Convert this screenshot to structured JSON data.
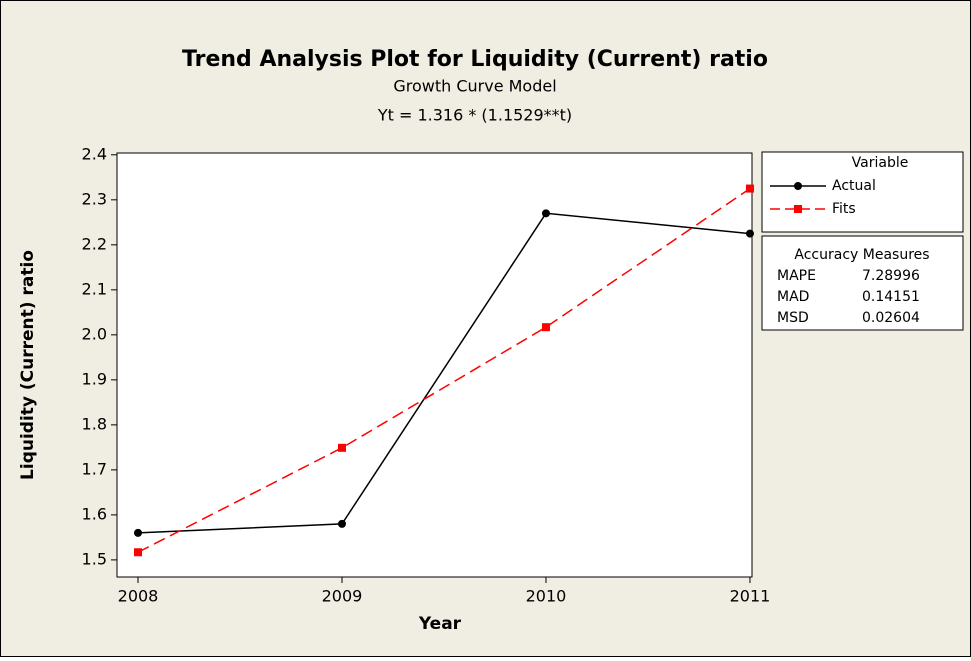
{
  "chart_data": {
    "type": "line",
    "title": "Trend Analysis Plot for Liquidity (Current)  ratio",
    "subtitle": "Growth Curve Model",
    "equation": "Yt = 1.316 * (1.1529**t)",
    "x_label": "Year",
    "y_label": "Liquidity (Current)  ratio",
    "x": [
      2008,
      2009,
      2010,
      2011
    ],
    "series": [
      {
        "name": "Actual",
        "color": "#000000",
        "marker": "circle",
        "dash": false,
        "values": [
          1.56,
          1.58,
          2.27,
          2.225
        ]
      },
      {
        "name": "Fits",
        "color": "#ff0000",
        "marker": "square",
        "dash": true,
        "values": [
          1.517,
          1.749,
          2.017,
          2.325
        ]
      }
    ],
    "legend_title": "Variable",
    "accuracy_measures": {
      "title": "Accuracy Measures",
      "rows": [
        {
          "name": "MAPE",
          "value": 7.28996
        },
        {
          "name": "MAD",
          "value": 0.14151
        },
        {
          "name": "MSD",
          "value": 0.02604
        }
      ]
    },
    "xlim": [
      2007.897,
      2011.01
    ],
    "xticks": [
      2008,
      2009,
      2010,
      2011
    ],
    "ylim": [
      1.462,
      2.404
    ],
    "yticks": [
      1.5,
      1.6,
      1.7,
      1.8,
      1.9,
      {
        "value": 2,
        "label": "2.0"
      },
      2.1,
      2.2,
      2.3,
      2.4
    ]
  }
}
